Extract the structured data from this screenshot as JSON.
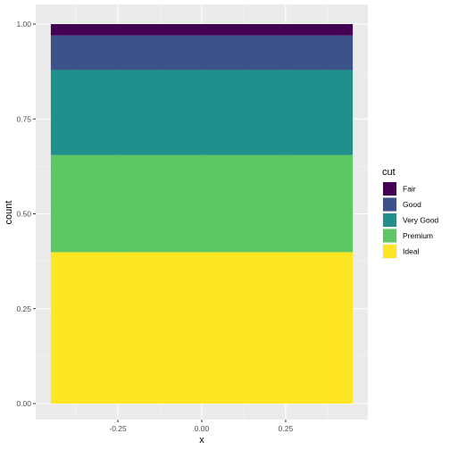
{
  "chart_data": {
    "type": "bar",
    "position": "fill",
    "xlabel": "x",
    "ylabel": "count",
    "xlim": [
      -0.45,
      0.45
    ],
    "ylim": [
      0,
      1
    ],
    "x_ticks": [
      -0.25,
      0.0,
      0.25
    ],
    "x_tick_labels": [
      "-0.25",
      "0.00",
      "0.25"
    ],
    "y_ticks": [
      0.0,
      0.25,
      0.5,
      0.75,
      1.0
    ],
    "y_tick_labels": [
      "0.00",
      "0.25",
      "0.50",
      "0.75",
      "1.00"
    ],
    "bar_x": 0,
    "bar_width": 0.9,
    "grid": true,
    "legend": {
      "title": "cut",
      "position": "right",
      "entries": [
        "Fair",
        "Good",
        "Very Good",
        "Premium",
        "Ideal"
      ]
    },
    "series": [
      {
        "name": "Fair",
        "value": 0.03,
        "color": "#440154"
      },
      {
        "name": "Good",
        "value": 0.091,
        "color": "#3B528B"
      },
      {
        "name": "Very Good",
        "value": 0.224,
        "color": "#21908C"
      },
      {
        "name": "Premium",
        "value": 0.256,
        "color": "#5DC863"
      },
      {
        "name": "Ideal",
        "value": 0.399,
        "color": "#FDE725"
      }
    ],
    "stack_order": [
      "Ideal",
      "Premium",
      "Very Good",
      "Good",
      "Fair"
    ]
  }
}
